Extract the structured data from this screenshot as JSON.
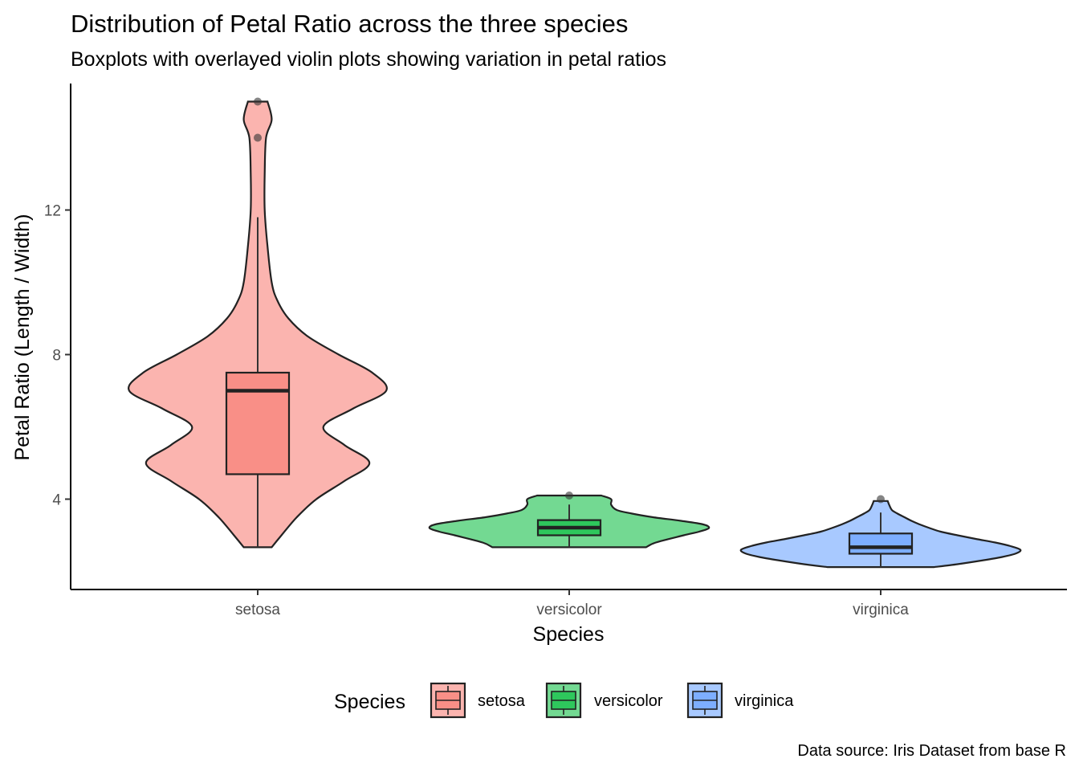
{
  "chart_data": {
    "type": "violin+boxplot",
    "title": "Distribution of Petal Ratio across the three species",
    "subtitle": "Boxplots with overlayed violin plots showing variation in petal ratios",
    "xlabel": "Species",
    "ylabel": "Petal Ratio (Length / Width)",
    "caption": "Data source: Iris Dataset from base R",
    "categories": [
      "setosa",
      "versicolor",
      "virginica"
    ],
    "ylim": [
      1.5,
      15.5
    ],
    "yticks": [
      4,
      8,
      12
    ],
    "grid": false,
    "legend": {
      "title": "Species",
      "placement": "bottom",
      "entries": [
        "setosa",
        "versicolor",
        "virginica"
      ]
    },
    "series": [
      {
        "name": "setosa",
        "color": "#F8766D",
        "box": {
          "whisker_low": 2.67,
          "q1": 4.69,
          "median": 7.0,
          "q3": 7.5,
          "whisker_high": 11.8
        },
        "outliers": [
          14.0,
          15.0
        ],
        "violin": {
          "y": [
            2.67,
            3.0,
            3.5,
            4.0,
            4.5,
            5.0,
            5.5,
            6.0,
            6.5,
            7.0,
            7.5,
            8.0,
            8.5,
            9.0,
            9.5,
            10.0,
            11.0,
            12.0,
            13.0,
            14.0,
            14.5,
            15.0
          ],
          "density": [
            0.1,
            0.17,
            0.28,
            0.42,
            0.62,
            0.8,
            0.62,
            0.47,
            0.68,
            0.92,
            0.82,
            0.58,
            0.36,
            0.22,
            0.14,
            0.1,
            0.07,
            0.05,
            0.05,
            0.06,
            0.1,
            0.07
          ]
        }
      },
      {
        "name": "versicolor",
        "color": "#00BA38",
        "box": {
          "whisker_low": 2.67,
          "q1": 3.0,
          "median": 3.21,
          "q3": 3.42,
          "whisker_high": 3.85
        },
        "outliers": [
          4.1
        ],
        "violin": {
          "y": [
            2.67,
            2.8,
            3.0,
            3.1,
            3.2,
            3.3,
            3.4,
            3.5,
            3.6,
            3.7,
            3.85,
            4.0,
            4.1
          ],
          "density": [
            0.55,
            0.62,
            0.82,
            0.93,
            1.0,
            0.96,
            0.8,
            0.6,
            0.45,
            0.34,
            0.3,
            0.3,
            0.23
          ]
        }
      },
      {
        "name": "virginica",
        "color": "#619CFF",
        "box": {
          "whisker_low": 2.12,
          "q1": 2.49,
          "median": 2.67,
          "q3": 3.05,
          "whisker_high": 3.63
        },
        "outliers": [
          4.0
        ],
        "violin": {
          "y": [
            2.12,
            2.2,
            2.3,
            2.4,
            2.5,
            2.6,
            2.7,
            2.8,
            2.9,
            3.0,
            3.1,
            3.2,
            3.3,
            3.4,
            3.5,
            3.6,
            3.7,
            3.85,
            3.95
          ],
          "density": [
            0.38,
            0.55,
            0.72,
            0.87,
            0.97,
            1.0,
            0.93,
            0.82,
            0.68,
            0.55,
            0.43,
            0.35,
            0.28,
            0.22,
            0.17,
            0.12,
            0.08,
            0.06,
            0.05
          ]
        }
      }
    ]
  }
}
